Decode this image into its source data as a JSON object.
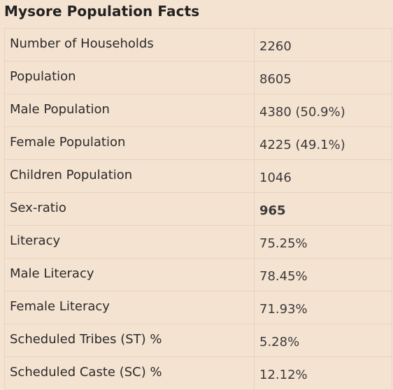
{
  "title": "Mysore Population Facts",
  "rows": [
    {
      "label": "Number of Households",
      "value": "2260"
    },
    {
      "label": "Population",
      "value": "8605"
    },
    {
      "label": "Male Population",
      "value": "4380 (50.9%)"
    },
    {
      "label": "Female Population",
      "value": "4225 (49.1%)"
    },
    {
      "label": "Children Population",
      "value": "1046"
    },
    {
      "label": "Sex-ratio",
      "value": "965"
    },
    {
      "label": "Literacy",
      "value": "75.25%"
    },
    {
      "label": "Male Literacy",
      "value": "78.45%"
    },
    {
      "label": "Female Literacy",
      "value": "71.93%"
    },
    {
      "label": "Scheduled Tribes (ST) %",
      "value": "5.28%"
    },
    {
      "label": "Scheduled Caste (SC) %",
      "value": "12.12%"
    }
  ]
}
